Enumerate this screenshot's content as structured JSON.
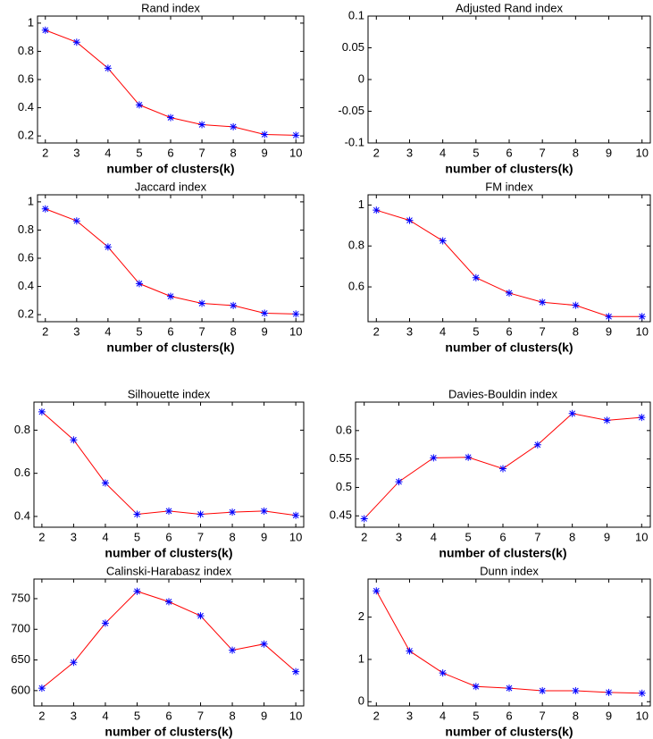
{
  "chart_data": [
    {
      "type": "line",
      "title": "Rand index",
      "xlabel": "number of clusters(k)",
      "x": [
        2,
        3,
        4,
        5,
        6,
        7,
        8,
        9,
        10
      ],
      "xlim": [
        1.75,
        10.25
      ],
      "xticks": [
        2,
        3,
        4,
        5,
        6,
        7,
        8,
        9,
        10
      ],
      "ylim": [
        0.15,
        1.05
      ],
      "yticks": [
        0.2,
        0.4,
        0.6,
        0.8,
        1
      ],
      "marker_color": "#0000ff",
      "series": [
        {
          "color": "#ff0000",
          "values": [
            0.95,
            0.865,
            0.68,
            0.42,
            0.33,
            0.28,
            0.265,
            0.21,
            0.205
          ]
        }
      ]
    },
    {
      "type": "line",
      "title": "Adjusted Rand index",
      "xlabel": "number of clusters(k)",
      "x": [
        2,
        3,
        4,
        5,
        6,
        7,
        8,
        9,
        10
      ],
      "xlim": [
        1.75,
        10.25
      ],
      "xticks": [
        2,
        3,
        4,
        5,
        6,
        7,
        8,
        9,
        10
      ],
      "ylim": [
        -0.1,
        0.1
      ],
      "yticks": [
        -0.1,
        -0.05,
        0,
        0.05,
        0.1
      ],
      "marker_color": "#0000ff",
      "series": [
        {
          "color": "#ff0000",
          "values": [
            null,
            null,
            null,
            null,
            null,
            null,
            null,
            null,
            null
          ]
        }
      ]
    },
    {
      "type": "line",
      "title": "Jaccard index",
      "xlabel": "number of clusters(k)",
      "x": [
        2,
        3,
        4,
        5,
        6,
        7,
        8,
        9,
        10
      ],
      "xlim": [
        1.75,
        10.25
      ],
      "xticks": [
        2,
        3,
        4,
        5,
        6,
        7,
        8,
        9,
        10
      ],
      "ylim": [
        0.15,
        1.05
      ],
      "yticks": [
        0.2,
        0.4,
        0.6,
        0.8,
        1
      ],
      "marker_color": "#0000ff",
      "series": [
        {
          "color": "#ff0000",
          "values": [
            0.95,
            0.865,
            0.68,
            0.42,
            0.33,
            0.28,
            0.265,
            0.21,
            0.205
          ]
        }
      ]
    },
    {
      "type": "line",
      "title": "FM index",
      "xlabel": "number of clusters(k)",
      "x": [
        2,
        3,
        4,
        5,
        6,
        7,
        8,
        9,
        10
      ],
      "xlim": [
        1.75,
        10.25
      ],
      "xticks": [
        2,
        3,
        4,
        5,
        6,
        7,
        8,
        9,
        10
      ],
      "ylim": [
        0.43,
        1.05
      ],
      "yticks": [
        0.6,
        0.8,
        1
      ],
      "marker_color": "#0000ff",
      "series": [
        {
          "color": "#ff0000",
          "values": [
            0.975,
            0.925,
            0.825,
            0.645,
            0.57,
            0.525,
            0.51,
            0.455,
            0.455
          ]
        }
      ]
    },
    {
      "type": "line",
      "title": "Silhouette index",
      "xlabel": "number of clusters(k)",
      "x": [
        2,
        3,
        4,
        5,
        6,
        7,
        8,
        9,
        10
      ],
      "xlim": [
        1.75,
        10.25
      ],
      "xticks": [
        2,
        3,
        4,
        5,
        6,
        7,
        8,
        9,
        10
      ],
      "ylim": [
        0.35,
        0.93
      ],
      "yticks": [
        0.4,
        0.6,
        0.8
      ],
      "marker_color": "#0000ff",
      "series": [
        {
          "color": "#ff0000",
          "values": [
            0.885,
            0.755,
            0.555,
            0.41,
            0.425,
            0.41,
            0.42,
            0.425,
            0.405
          ]
        }
      ]
    },
    {
      "type": "line",
      "title": "Davies-Bouldin index",
      "xlabel": "number of clusters(k)",
      "x": [
        2,
        3,
        4,
        5,
        6,
        7,
        8,
        9,
        10
      ],
      "xlim": [
        1.75,
        10.25
      ],
      "xticks": [
        2,
        3,
        4,
        5,
        6,
        7,
        8,
        9,
        10
      ],
      "ylim": [
        0.43,
        0.65
      ],
      "yticks": [
        0.45,
        0.5,
        0.55,
        0.6
      ],
      "marker_color": "#0000ff",
      "series": [
        {
          "color": "#ff0000",
          "values": [
            0.445,
            0.51,
            0.552,
            0.553,
            0.533,
            0.575,
            0.63,
            0.618,
            0.623
          ]
        }
      ]
    },
    {
      "type": "line",
      "title": "Calinski-Harabasz index",
      "xlabel": "number of clusters(k)",
      "x": [
        2,
        3,
        4,
        5,
        6,
        7,
        8,
        9,
        10
      ],
      "xlim": [
        1.75,
        10.25
      ],
      "xticks": [
        2,
        3,
        4,
        5,
        6,
        7,
        8,
        9,
        10
      ],
      "ylim": [
        575,
        782
      ],
      "yticks": [
        600,
        650,
        700,
        750
      ],
      "marker_color": "#0000ff",
      "series": [
        {
          "color": "#ff0000",
          "values": [
            604,
            646,
            710,
            762,
            745,
            722,
            666,
            676,
            631
          ]
        }
      ]
    },
    {
      "type": "line",
      "title": "Dunn index",
      "xlabel": "number of clusters(k)",
      "x": [
        2,
        3,
        4,
        5,
        6,
        7,
        8,
        9,
        10
      ],
      "xlim": [
        1.75,
        10.25
      ],
      "xticks": [
        2,
        3,
        4,
        5,
        6,
        7,
        8,
        9,
        10
      ],
      "ylim": [
        -0.1,
        2.9
      ],
      "yticks": [
        0,
        1,
        2
      ],
      "marker_color": "#0000ff",
      "series": [
        {
          "color": "#ff0000",
          "values": [
            2.62,
            1.2,
            0.68,
            0.36,
            0.32,
            0.26,
            0.26,
            0.22,
            0.2
          ]
        }
      ]
    }
  ]
}
